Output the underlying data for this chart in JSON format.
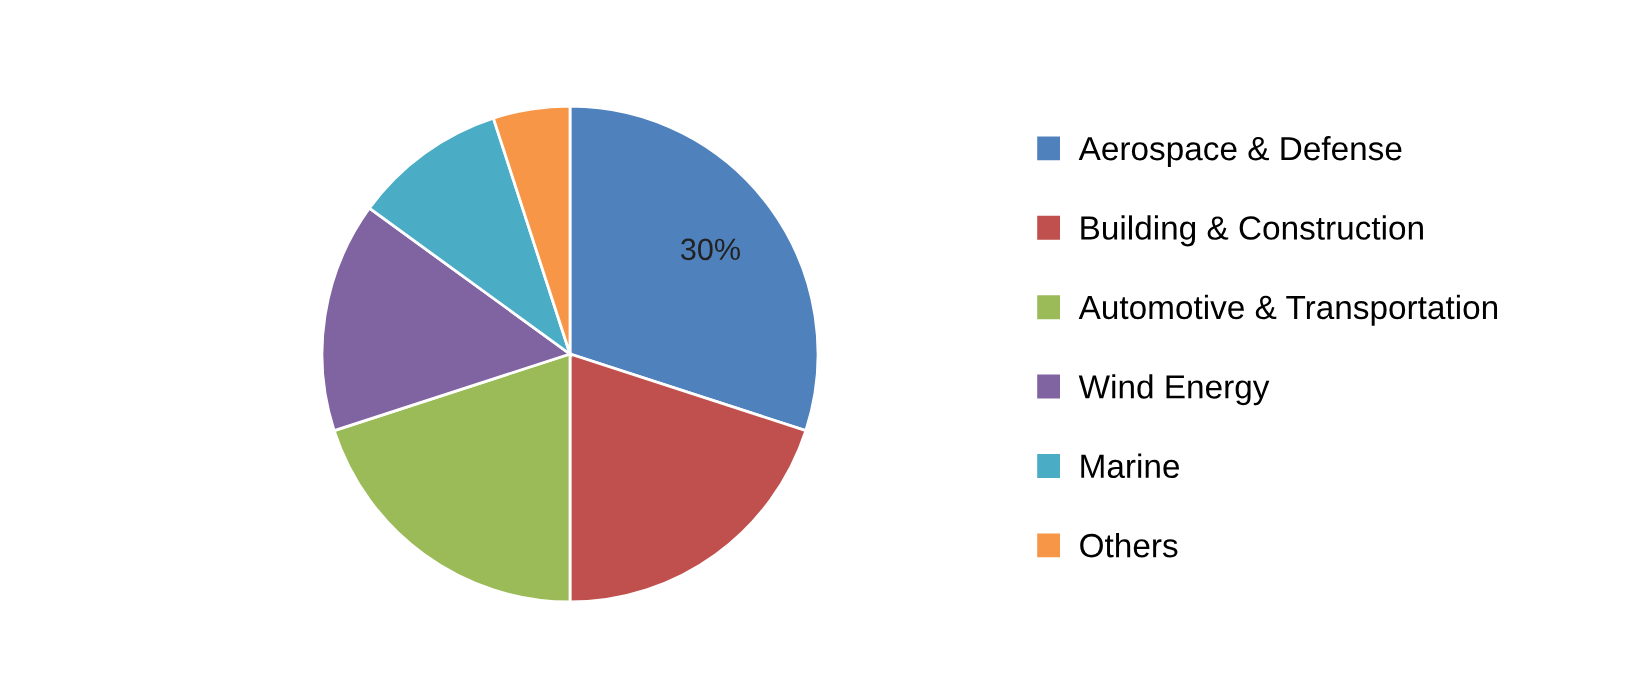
{
  "chart_data": {
    "type": "pie",
    "categories": [
      "Aerospace & Defense",
      "Building & Construction",
      "Automotive & Transportation",
      "Wind Energy",
      "Marine",
      "Others"
    ],
    "values": [
      30,
      20,
      20,
      15,
      10,
      5
    ],
    "colors": [
      "#4f81bd",
      "#c0504d",
      "#9bbb59",
      "#8064a2",
      "#4bacc6",
      "#f79646"
    ],
    "value_labels": [
      "30%",
      null,
      null,
      null,
      null,
      null
    ],
    "legend": "right"
  }
}
